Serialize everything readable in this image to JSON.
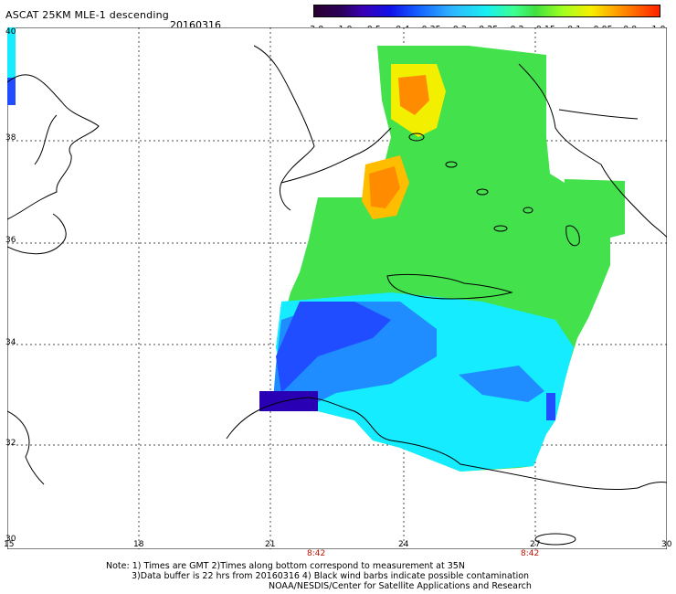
{
  "header": {
    "title": "ASCAT 25KM MLE-1 descending",
    "date": "20160316"
  },
  "colorbar": {
    "ticks": [
      "-3.0",
      "-1.0",
      "-0.5",
      "-0.4",
      "-0.35",
      "-0.3",
      "-0.25",
      "-0.2",
      "-0.15",
      "-0.1",
      "-0.05",
      "0.0",
      "1.0"
    ]
  },
  "map": {
    "lon_labels": [
      "15",
      "18",
      "21",
      "24",
      "27",
      "30"
    ],
    "lat_labels": [
      "40",
      "38",
      "36",
      "34",
      "32",
      "30"
    ],
    "time_labels": [
      "8:42",
      "8:42"
    ]
  },
  "notes": {
    "line1": "Note: 1) Times are GMT 2)Times along bottom correspond to measurement at 35N",
    "line2": "3)Data buffer is 22 hrs from 20160316 4) Black wind barbs indicate possible contamination",
    "line3": "NOAA/NESDIS/Center for Satellite Applications and Research"
  },
  "colors": {
    "blue_dark": "#2a00b4",
    "blue": "#1f4dff",
    "cyan": "#16ecff",
    "green": "#43e14b",
    "yellow": "#f2f000",
    "orange": "#ff8c00"
  }
}
